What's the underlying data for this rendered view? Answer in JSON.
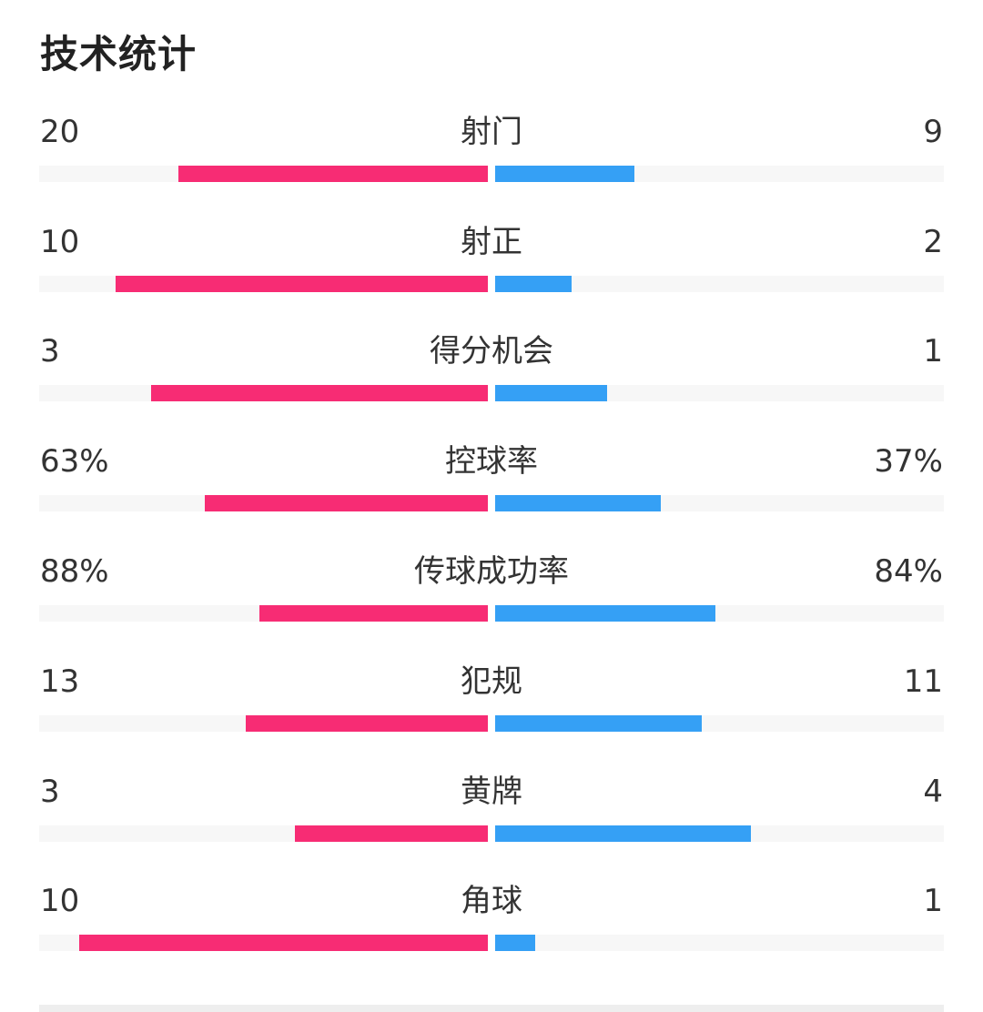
{
  "title": "技术统计",
  "colors": {
    "home": "#f72c74",
    "away": "#35a0f5",
    "track": "#f7f7f7",
    "text": "#333333"
  },
  "stats": [
    {
      "label": "射门",
      "home": "20",
      "away": "9",
      "home_ratio": 0.69,
      "away_ratio": 0.31
    },
    {
      "label": "射正",
      "home": "10",
      "away": "2",
      "home_ratio": 0.83,
      "away_ratio": 0.17
    },
    {
      "label": "得分机会",
      "home": "3",
      "away": "1",
      "home_ratio": 0.75,
      "away_ratio": 0.25
    },
    {
      "label": "控球率",
      "home": "63%",
      "away": "37%",
      "home_ratio": 0.63,
      "away_ratio": 0.37
    },
    {
      "label": "传球成功率",
      "home": "88%",
      "away": "84%",
      "home_ratio": 0.51,
      "away_ratio": 0.49
    },
    {
      "label": "犯规",
      "home": "13",
      "away": "11",
      "home_ratio": 0.54,
      "away_ratio": 0.46
    },
    {
      "label": "黄牌",
      "home": "3",
      "away": "4",
      "home_ratio": 0.43,
      "away_ratio": 0.57
    },
    {
      "label": "角球",
      "home": "10",
      "away": "1",
      "home_ratio": 0.91,
      "away_ratio": 0.09
    }
  ]
}
